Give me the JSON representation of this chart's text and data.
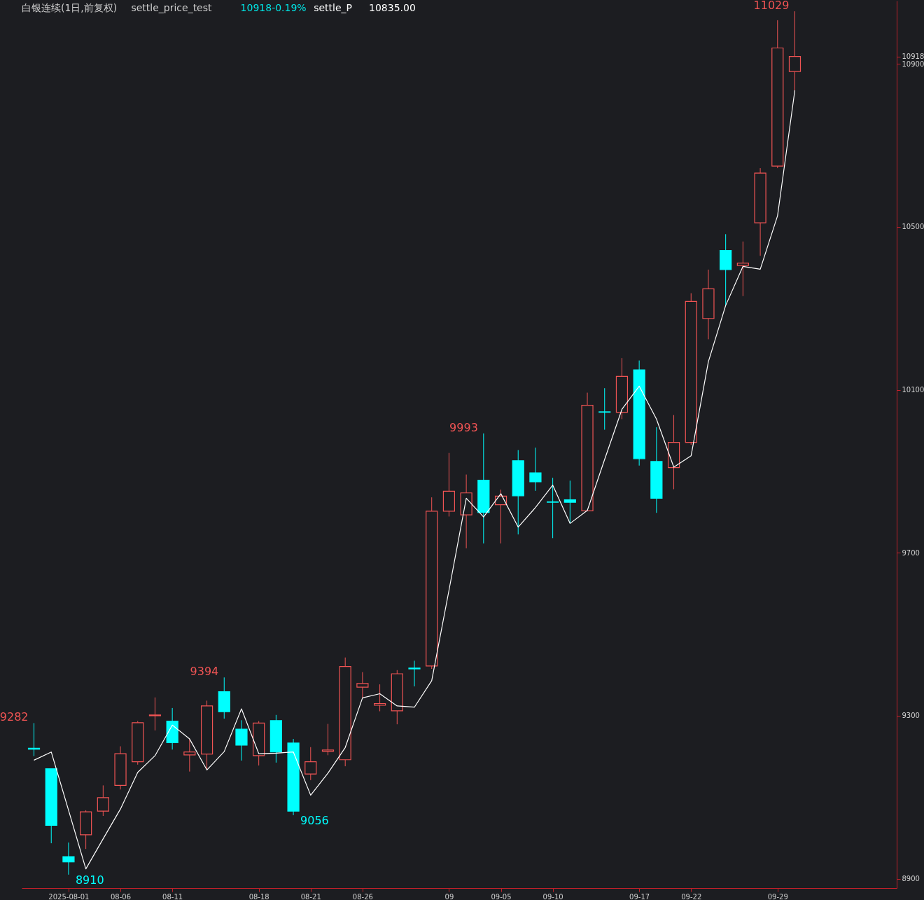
{
  "chart_data": {
    "type": "candlestick",
    "title": "白银连续(1日,前复权)",
    "categories": [
      null,
      null,
      "2025-08-01",
      null,
      null,
      "08-06",
      null,
      null,
      "08-11",
      null,
      null,
      null,
      null,
      "08-18",
      null,
      null,
      "08-21",
      null,
      null,
      "08-26",
      null,
      null,
      null,
      null,
      "09",
      null,
      null,
      "09-05",
      null,
      null,
      "09-10",
      null,
      null,
      null,
      null,
      "09-17",
      null,
      null,
      "09-22",
      null,
      null,
      null,
      null,
      "09-29",
      null
    ],
    "ohlc": [
      [
        9220,
        9282,
        9201,
        9218
      ],
      [
        9170,
        9170,
        8987,
        9031
      ],
      [
        8954,
        8989,
        8910,
        8941
      ],
      [
        9008,
        9068,
        8973,
        9064
      ],
      [
        9066,
        9129,
        9054,
        9099
      ],
      [
        9129,
        9225,
        9119,
        9207
      ],
      [
        9187,
        9287,
        9180,
        9283
      ],
      [
        9300,
        9345,
        9264,
        9302
      ],
      [
        9287,
        9319,
        9217,
        9234
      ],
      [
        9204,
        9243,
        9163,
        9211
      ],
      [
        9206,
        9337,
        9169,
        9324
      ],
      [
        9359,
        9394,
        9293,
        9310
      ],
      [
        9267,
        9289,
        9190,
        9228
      ],
      [
        9202,
        9287,
        9178,
        9282
      ],
      [
        9288,
        9302,
        9185,
        9211
      ],
      [
        9233,
        9243,
        9056,
        9066
      ],
      [
        9157,
        9223,
        9142,
        9187
      ],
      [
        9213,
        9280,
        9203,
        9216
      ],
      [
        9192,
        9443,
        9176,
        9421
      ],
      [
        9370,
        9407,
        9344,
        9379
      ],
      [
        9326,
        9377,
        9311,
        9330
      ],
      [
        9312,
        9412,
        9279,
        9403
      ],
      [
        9417,
        9435,
        9372,
        9415
      ],
      [
        9422,
        9836,
        9415,
        9802
      ],
      [
        9802,
        9945,
        9789,
        9851
      ],
      [
        9793,
        9892,
        9711,
        9847
      ],
      [
        9878,
        9993,
        9723,
        9799
      ],
      [
        9818,
        9855,
        9723,
        9839
      ],
      [
        9926,
        9952,
        9745,
        9840
      ],
      [
        9896,
        9958,
        9852,
        9874
      ],
      [
        9825,
        9884,
        9736,
        9824
      ],
      [
        9830,
        9877,
        9772,
        9824
      ],
      [
        9803,
        10093,
        9803,
        10062
      ],
      [
        10046,
        10104,
        10002,
        10045
      ],
      [
        10045,
        10178,
        10028,
        10133
      ],
      [
        10149,
        10172,
        9914,
        9931
      ],
      [
        9924,
        10008,
        9798,
        9834
      ],
      [
        9909,
        10038,
        9856,
        9971
      ],
      [
        9971,
        10337,
        9965,
        10317
      ],
      [
        10275,
        10395,
        10224,
        10348
      ],
      [
        10442,
        10482,
        10307,
        10395
      ],
      [
        10405,
        10464,
        10330,
        10411
      ],
      [
        10510,
        10644,
        10429,
        10632
      ],
      [
        10649,
        11007,
        10644,
        10939
      ],
      [
        10881,
        11029,
        10834,
        10918
      ]
    ],
    "colors": [
      "#00ffff",
      "#00ffff",
      "#00ffff",
      "#f05454",
      "#f05454",
      "#f05454",
      "#f05454",
      "#f05454",
      "#00ffff",
      "#f05454",
      "#f05454",
      "#00ffff",
      "#00ffff",
      "#f05454",
      "#00ffff",
      "#00ffff",
      "#f05454",
      "#f05454",
      "#f05454",
      "#f05454",
      "#f05454",
      "#f05454",
      "#00ffff",
      "#f05454",
      "#f05454",
      "#f05454",
      "#00ffff",
      "#f05454",
      "#00ffff",
      "#00ffff",
      "#00ffff",
      "#00ffff",
      "#f05454",
      "#00ffff",
      "#f05454",
      "#00ffff",
      "#00ffff",
      "#f05454",
      "#f05454",
      "#f05454",
      "#00ffff",
      "#f05454",
      "#f05454",
      "#f05454",
      "#f05454"
    ],
    "series": [
      {
        "name": "settle_P",
        "type": "line",
        "color": "#ffffff",
        "values": [
          9191,
          9211,
          9068,
          8924,
          8998,
          9071,
          9161,
          9202,
          9277,
          9243,
          9167,
          9212,
          9317,
          9207,
          9208,
          9211,
          9105,
          9159,
          9222,
          9344,
          9354,
          9324,
          9321,
          9386,
          9608,
          9834,
          9788,
          9845,
          9763,
          9811,
          9866,
          9772,
          9804,
          9929,
          10052,
          10109,
          10028,
          9910,
          9938,
          10169,
          10307,
          10403,
          10396,
          10527,
          10835
        ]
      }
    ],
    "ylim": [
      8877,
      11055
    ],
    "yticks": [
      8900,
      9300,
      9700,
      10100,
      10500,
      10900,
      10918
    ],
    "annotations": [
      "settle_price_test",
      "10918-0.19%",
      "10835.00",
      "9282",
      "8910",
      "9394",
      "9056",
      "9993",
      "11029"
    ]
  }
}
